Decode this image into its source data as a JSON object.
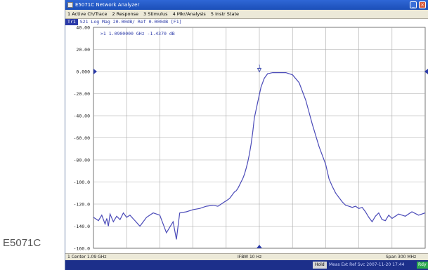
{
  "caption": "E5071C",
  "window": {
    "title": "E5071C Network Analyzer"
  },
  "menu": [
    "1 Active Ch/Trace",
    "2 Response",
    "3 Stimulus",
    "4 Mkr/Analysis",
    "5 Instr State"
  ],
  "trace_header": {
    "tag": "Tr1",
    "text": "S21 Log Mag 20.00dB/ Ref 0.000dB [F1]"
  },
  "marker_readout": ">1   1.0900000 GHz -1.4370 dB",
  "marker_label": "1",
  "status": {
    "left": "1  Center 1.09 GHz",
    "center": "IFBW 10 Hz",
    "right": "Span 300 MHz"
  },
  "bottom": {
    "hold": "Hold",
    "time": "Meas  Ext Ref  Svc  2007-11-20 17:44",
    "indicator": "Rdy"
  },
  "colors": {
    "trace": "#4a4ab8",
    "grid": "#a8a8a8",
    "accent": "#2b3aa8"
  },
  "chart_data": {
    "type": "line",
    "title": "",
    "xlabel": "",
    "ylabel": "",
    "ylim": [
      -160,
      40
    ],
    "yticks": [
      "40.00",
      "20.00",
      "0.000",
      "-20.00",
      "-40.00",
      "-60.00",
      "-80.00",
      "-100.0",
      "-120.0",
      "-140.0",
      "-160.0"
    ],
    "x_center_ghz": 1.09,
    "x_span_mhz": 300,
    "ref_level_db": 0,
    "series": [
      {
        "x": [
          0,
          3,
          5,
          7,
          8,
          9,
          10,
          12,
          14,
          16,
          18,
          20,
          22,
          25,
          28,
          32,
          36,
          40,
          44,
          48,
          50,
          52,
          56,
          60,
          64,
          68,
          72,
          75,
          77,
          79,
          81,
          82,
          83,
          84,
          85,
          86,
          87,
          88,
          89,
          90,
          91,
          92,
          93,
          94,
          95,
          96,
          97,
          99,
          101,
          103,
          105,
          108,
          112,
          116,
          120,
          124,
          128,
          132,
          136,
          140,
          142,
          144,
          146,
          148,
          150,
          152,
          154,
          156,
          158,
          160,
          162,
          164,
          166,
          168,
          170,
          172,
          174,
          176,
          178,
          180,
          184,
          188,
          192,
          196,
          200
        ],
        "y": [
          -132,
          -135,
          -130,
          -138,
          -133,
          -140,
          -129,
          -136,
          -131,
          -134,
          -128,
          -132,
          -130,
          -135,
          -140,
          -132,
          -128,
          -130,
          -146,
          -136,
          -152,
          -128,
          -127,
          -125,
          -124,
          -122,
          -121,
          -122,
          -120,
          -118,
          -116,
          -115,
          -113,
          -111,
          -109,
          -108,
          -106,
          -103,
          -100,
          -97,
          -93,
          -88,
          -82,
          -75,
          -66,
          -55,
          -42,
          -28,
          -14,
          -6,
          -2,
          -1,
          -1,
          -1,
          -3,
          -10,
          -26,
          -48,
          -68,
          -84,
          -97,
          -104,
          -110,
          -114,
          -118,
          -121,
          -122,
          -123,
          -122,
          -124,
          -123,
          -127,
          -132,
          -136,
          -131,
          -128,
          -134,
          -135,
          -130,
          -133,
          -129,
          -131,
          -127,
          -130,
          -128
        ]
      }
    ]
  }
}
